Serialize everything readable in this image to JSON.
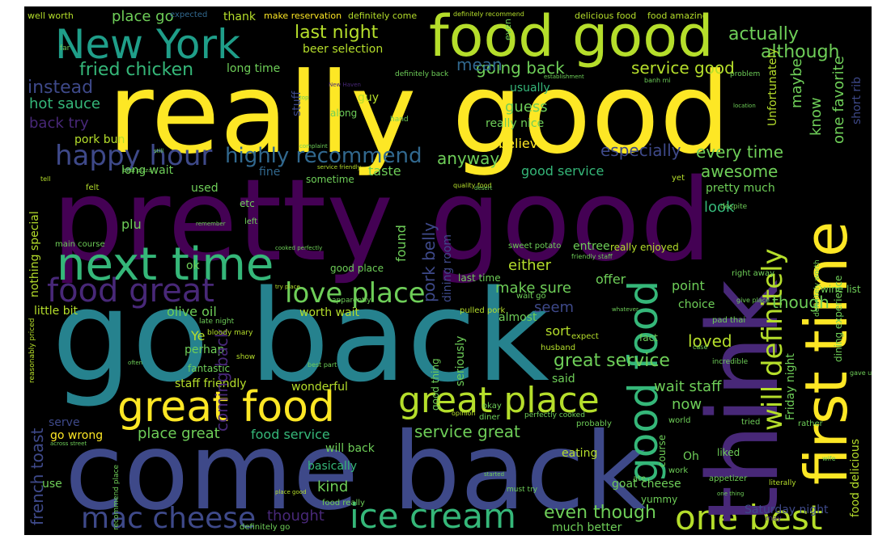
{
  "palette": {
    "yellow": "#fde725",
    "lime": "#b5de2b",
    "green": "#6ece58",
    "teal_green": "#35b779",
    "teal": "#1f9e89",
    "cyan_blue": "#26828e",
    "steel_blue": "#31688e",
    "indigo": "#3e4989",
    "violet": "#482878",
    "deep_purple": "#440154"
  },
  "words": {
    "really_good": "really good",
    "pretty_good": "pretty good",
    "go_back": "go back",
    "come_back": "come back",
    "food_good": "food good",
    "new_york": "New York",
    "next_time": "next time",
    "think": "think",
    "first_time": "first time",
    "great_food": "great food",
    "great_place": "great place",
    "good_food": "good food",
    "will_definitely": "will definitely",
    "ice_cream": "ice cream",
    "one_best": "one best",
    "mac_cheese": "mac cheese",
    "happy_hour": "happy hour",
    "love_place": "love place",
    "food_great": "food great",
    "highly_recommend": "highly recommend",
    "last_night": "last night",
    "fried_chicken": "fried chicken",
    "service_good": "service good",
    "actually": "actually",
    "although": "although",
    "going_back": "going back",
    "every_time": "every time",
    "instead": "instead",
    "hot_sauce": "hot sauce",
    "back_try": "back try",
    "long_time": "long time",
    "beer_selection": "beer selection",
    "place_go": "place go",
    "thank": "thank",
    "make_reservation": "make reservation",
    "definitely_come": "definitely come",
    "well_worth": "well worth",
    "expected": "expected",
    "definitely_recommend": "definitely recommend",
    "even": "even",
    "delicious_food": "delicious food",
    "food_amazing": "food amazing",
    "mean": "mean",
    "usually": "usually",
    "guess": "guess",
    "really_nice": "really nice",
    "believe": "believe",
    "anyway": "anyway",
    "especially": "especially",
    "awesome": "awesome",
    "good_service": "good service",
    "taste": "taste",
    "long_wait": "long wait",
    "used": "used",
    "fine": "fine",
    "sometime": "sometime",
    "pretty_much": "pretty much",
    "look": "look",
    "either": "either",
    "pork_belly": "pork belly",
    "dining_room": "dining room",
    "found": "found",
    "make_sure": "make sure",
    "offer": "offer",
    "point": "point",
    "seem": "seem",
    "last_time": "last time",
    "good_place": "good place",
    "ok": "ok",
    "little_bit": "little bit",
    "olive_oil": "olive oil",
    "worth_wait": "worth wait",
    "plu": "plu",
    "perhap": "perhap",
    "ye": "Ye",
    "coming_back": "coming back",
    "fantastic": "fantastic",
    "staff_friendly": "staff friendly",
    "wonderful": "wonderful",
    "serve": "serve",
    "go_wrong": "go wrong",
    "place_great": "place great",
    "food_service": "food service",
    "will_back": "will back",
    "basically": "basically",
    "kind": "kind",
    "use": "use",
    "thought": "thought",
    "great_service": "great service",
    "said": "said",
    "service_great": "service great",
    "eating": "eating",
    "even_though": "even though",
    "much_better": "much better",
    "goat_cheese": "goat cheese",
    "yummy": "yummy",
    "wait_staff": "wait staff",
    "now": "now",
    "loved": "loved",
    "choice": "choice",
    "sort": "sort",
    "almost": "almost",
    "though": "though",
    "saturday_night": "Saturday night",
    "oh": "Oh",
    "liked": "liked",
    "french_toast": "french toast",
    "nothing_special": "nothing special",
    "maybe": "maybe",
    "know": "know",
    "one_favorite": "one favorite",
    "unfortunately": "Unfortunately",
    "short_rib": "short rib",
    "pork_bun": "pork bun",
    "guy": "guy",
    "stuff": "stuff",
    "along": "along",
    "friday_night": "Friday night",
    "food_delicious": "food delicious",
    "dining_experience": "dining experience",
    "wine_list": "wine list",
    "etc": "etc",
    "main_course": "main course",
    "entree": "entree",
    "really_enjoyed": "really enjoyed",
    "sweet_potato": "sweet potato",
    "good_thing": "good thing",
    "seriously": "seriously",
    "okay": "okay",
    "husband": "husband",
    "pulled_pork": "pulled pork",
    "wait_go": "wait go",
    "expect": "expect",
    "fact": "fact",
    "pad_thai": "pad thai",
    "right_away": "right away",
    "give_place": "give place",
    "incredible": "incredible",
    "world": "world",
    "tried": "tried",
    "rather": "rather",
    "work": "work",
    "appetizer": "appetizer",
    "literally": "literally",
    "ate": "ate",
    "course": "course",
    "diner": "diner",
    "perfectly_cooked": "perfectly cooked",
    "probably": "probably",
    "opinion": "opinion",
    "must_try": "must try",
    "food_really": "food really",
    "definitely_go": "definitely go",
    "recommend_place": "recommend place",
    "reasonably_priced": "reasonably priced",
    "across_street": "across street",
    "place_good": "place good",
    "started": "started",
    "late_night": "late night",
    "bloody_mary": "bloody mary",
    "show": "show",
    "best_part": "best part",
    "apparently": "apparently",
    "friendly_staff": "friendly staff",
    "quality_food": "quality food",
    "yet": "yet",
    "despite": "despite",
    "remember": "remember",
    "cooked_perfectly": "cooked perfectly",
    "service_friendly": "service friendly",
    "left": "left",
    "felt": "felt",
    "tell": "tell",
    "still": "still",
    "best_pizza": "best pizza",
    "complaint": "complaint",
    "hand": "hand",
    "top": "top",
    "definitely_back": "definitely back",
    "establishment": "establishment",
    "new_haven": "New Haven",
    "problem": "problem",
    "banh_mi": "banh mi",
    "location": "location",
    "wife": "wife",
    "gave_us": "gave us",
    "one_thing": "one thing",
    "may": "may",
    "case": "case",
    "whatever": "whatever",
    "often": "often",
    "far": "far",
    "desert": "desert",
    "definitely_worth": "definitely worth",
    "try_place": "try place"
  }
}
